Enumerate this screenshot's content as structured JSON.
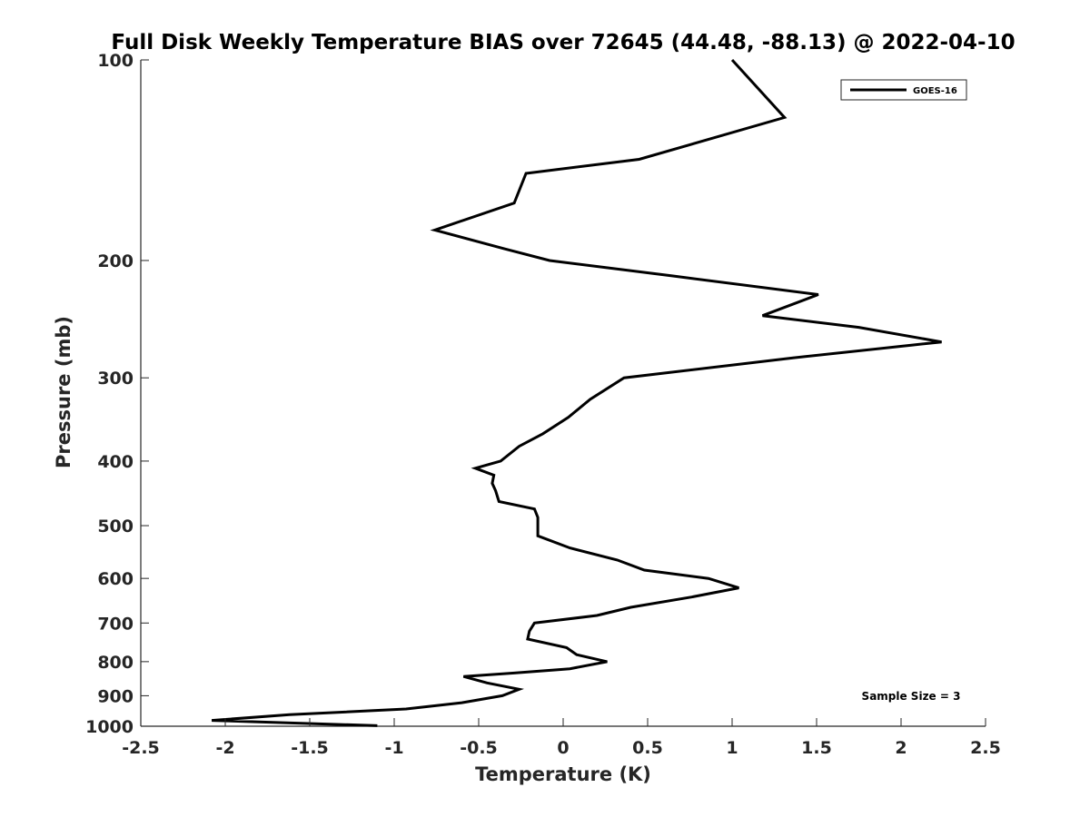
{
  "chart_data": {
    "type": "line",
    "title": "Full Disk Weekly Temperature BIAS over 72645 (44.48, -88.13) @ 2022-04-10",
    "xlabel": "Temperature (K)",
    "ylabel": "Pressure (mb)",
    "xlim": [
      -2.5,
      2.5
    ],
    "ylim": [
      100,
      1000
    ],
    "y_scale": "log",
    "y_reversed": true,
    "x_ticks": [
      -2.5,
      -2,
      -1.5,
      -1,
      -0.5,
      0,
      0.5,
      1,
      1.5,
      2,
      2.5
    ],
    "x_tick_labels": [
      "-2.5",
      "-2",
      "-1.5",
      "-1",
      "-0.5",
      "0",
      "0.5",
      "1",
      "1.5",
      "2",
      "2.5"
    ],
    "y_ticks": [
      100,
      200,
      300,
      400,
      500,
      600,
      700,
      800,
      900,
      1000
    ],
    "y_tick_labels": [
      "100",
      "200",
      "300",
      "400",
      "500",
      "600",
      "700",
      "800",
      "900",
      "1000"
    ],
    "grid": false,
    "legend_position": "top-right",
    "series": [
      {
        "name": "GOES-16",
        "color": "#000000",
        "x": [
          1.0,
          1.31,
          0.45,
          -0.22,
          -0.29,
          -0.76,
          -0.35,
          -0.08,
          0.65,
          1.51,
          1.18,
          1.75,
          2.24,
          1.36,
          0.36,
          0.16,
          0.03,
          -0.12,
          -0.26,
          -0.37,
          -0.52,
          -0.41,
          -0.42,
          -0.4,
          -0.38,
          -0.17,
          -0.15,
          -0.15,
          -0.15,
          0.04,
          0.32,
          0.48,
          0.86,
          1.04,
          0.76,
          0.4,
          0.2,
          -0.17,
          -0.2,
          -0.21,
          0.02,
          0.08,
          0.26,
          0.04,
          -0.29,
          -0.59,
          -0.45,
          -0.26,
          -0.36,
          -0.6,
          -0.93,
          -1.62,
          -2.08,
          -1.1
        ],
        "y": [
          100,
          122,
          141,
          148,
          164,
          180,
          192,
          200,
          211,
          225,
          242,
          252,
          265,
          280,
          300,
          323,
          344,
          364,
          380,
          400,
          410,
          420,
          432,
          443,
          460,
          472,
          486,
          500,
          518,
          540,
          563,
          583,
          600,
          620,
          640,
          663,
          682,
          700,
          720,
          740,
          762,
          781,
          800,
          820,
          832,
          842,
          861,
          880,
          900,
          922,
          942,
          961,
          980,
          998
        ]
      }
    ],
    "annotation": "Sample Size = 3"
  }
}
